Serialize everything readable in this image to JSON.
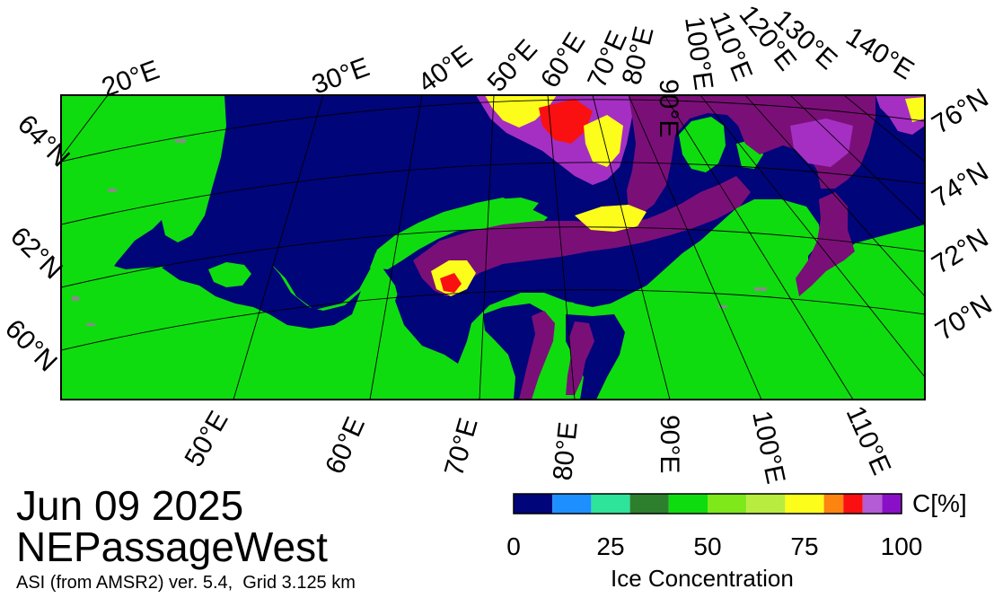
{
  "date": "Jun 09 2025",
  "region": "NEPassageWest",
  "product": "ASI (from AMSR2) ver. 5.4,  Grid 3.125 km",
  "colorbar": {
    "title": "Ice Concentration",
    "unit": "C[%]",
    "ticks": [
      "0",
      "25",
      "50",
      "75",
      "100"
    ],
    "colors": [
      "#00057a",
      "#1e8fff",
      "#2ee39a",
      "#2d7f2d",
      "#0fdc0f",
      "#7ee81b",
      "#b8ec3e",
      "#fdfd1c",
      "#fd8410",
      "#fa1010",
      "#b45bd6",
      "#8a10c8"
    ]
  },
  "map_colors": {
    "ocean": "#00057a",
    "land": "#0fdc0f",
    "ice_high": "#7b0f78",
    "ice_violet": "#a52fc3",
    "ice_mid": "#fdfd1c",
    "ice_low": "#fa1010",
    "land_mask": "#8a8a8a"
  },
  "labels": {
    "top": [
      "20°E",
      "30°E",
      "40°E",
      "50°E",
      "60°E",
      "70°E",
      "80°E",
      "90°E",
      "100°E",
      "110°E",
      "120°E",
      "130°E",
      "140°E"
    ],
    "bottom": [
      "50°E",
      "60°E",
      "70°E",
      "80°E",
      "90°E",
      "100°E",
      "110°E"
    ],
    "left": [
      "64°N",
      "62°N",
      "60°N"
    ],
    "right": [
      "76°N",
      "74°N",
      "72°N",
      "70°N"
    ]
  }
}
